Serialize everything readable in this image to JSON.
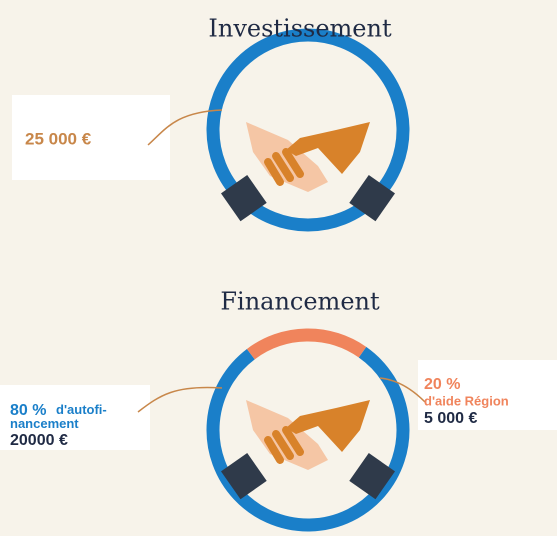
{
  "chart_data": [
    {
      "type": "donut",
      "title": "Investissement",
      "values": [
        25000
      ],
      "value_labels": [
        "25 000 €"
      ],
      "colors": [
        "#1a7fc9"
      ]
    },
    {
      "type": "donut",
      "title": "Financement",
      "categories": [
        "d'autofi-\nnancement",
        "d'aide Région"
      ],
      "percent_labels": [
        "80 %",
        "20 %"
      ],
      "values": [
        20000,
        5000
      ],
      "value_labels": [
        "20000 €",
        "5 000 €"
      ],
      "colors": [
        "#1a7fc9",
        "#f0845c"
      ]
    }
  ]
}
